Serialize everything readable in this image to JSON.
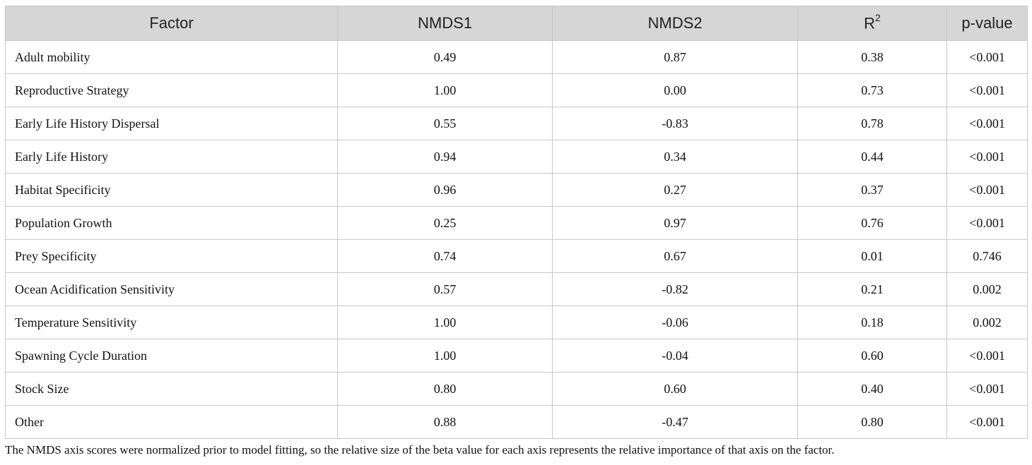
{
  "table": {
    "headers": {
      "factor": "Factor",
      "nmds1": "NMDS1",
      "nmds2": "NMDS2",
      "r2_base": "R",
      "r2_sup": "2",
      "pvalue": "p-value"
    },
    "rows": [
      {
        "factor": "Adult mobility",
        "nmds1": "0.49",
        "nmds2": "0.87",
        "r2": "0.38",
        "pvalue": "<0.001"
      },
      {
        "factor": "Reproductive Strategy",
        "nmds1": "1.00",
        "nmds2": "0.00",
        "r2": "0.73",
        "pvalue": "<0.001"
      },
      {
        "factor": "Early Life History Dispersal",
        "nmds1": "0.55",
        "nmds2": "-0.83",
        "r2": "0.78",
        "pvalue": "<0.001"
      },
      {
        "factor": "Early Life History",
        "nmds1": "0.94",
        "nmds2": "0.34",
        "r2": "0.44",
        "pvalue": "<0.001"
      },
      {
        "factor": "Habitat Specificity",
        "nmds1": "0.96",
        "nmds2": "0.27",
        "r2": "0.37",
        "pvalue": "<0.001"
      },
      {
        "factor": "Population Growth",
        "nmds1": "0.25",
        "nmds2": "0.97",
        "r2": "0.76",
        "pvalue": "<0.001"
      },
      {
        "factor": "Prey Specificity",
        "nmds1": "0.74",
        "nmds2": "0.67",
        "r2": "0.01",
        "pvalue": "0.746"
      },
      {
        "factor": "Ocean Acidification Sensitivity",
        "nmds1": "0.57",
        "nmds2": "-0.82",
        "r2": "0.21",
        "pvalue": "0.002"
      },
      {
        "factor": "Temperature Sensitivity",
        "nmds1": "1.00",
        "nmds2": "-0.06",
        "r2": "0.18",
        "pvalue": "0.002"
      },
      {
        "factor": "Spawning Cycle Duration",
        "nmds1": "1.00",
        "nmds2": "-0.04",
        "r2": "0.60",
        "pvalue": "<0.001"
      },
      {
        "factor": "Stock Size",
        "nmds1": "0.80",
        "nmds2": "0.60",
        "r2": "0.40",
        "pvalue": "<0.001"
      },
      {
        "factor": "Other",
        "nmds1": "0.88",
        "nmds2": "-0.47",
        "r2": "0.80",
        "pvalue": "<0.001"
      }
    ]
  },
  "footnote": "The NMDS axis scores were normalized prior to model fitting, so the relative size of the beta value for each axis represents the relative importance of that axis on the factor."
}
